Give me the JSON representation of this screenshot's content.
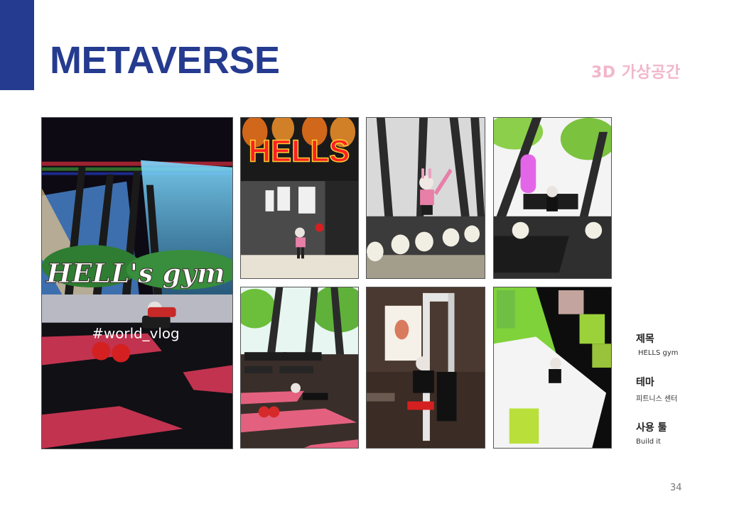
{
  "header": {
    "title": "METAVERSE",
    "subtitle": "3D 가상공간"
  },
  "gallery": {
    "main_overlay_title": "HELL's gym",
    "main_overlay_tag": "#world_vlog",
    "sign_text": "HELLS"
  },
  "info": [
    {
      "label": "제목",
      "value": "HELLS gym"
    },
    {
      "label": "테마",
      "value": "피트니스 센터"
    },
    {
      "label": "사용 툴",
      "value": "Build it"
    }
  ],
  "page_number": "34",
  "colors": {
    "accent": "#253b8f",
    "subtitle": "#f2b6cb"
  }
}
